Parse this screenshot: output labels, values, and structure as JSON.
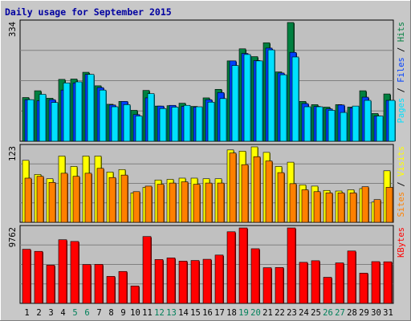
{
  "chart_data": {
    "type": "bar",
    "title": "Daily usage for September 2015",
    "categories": [
      "1",
      "2",
      "3",
      "4",
      "5",
      "6",
      "7",
      "8",
      "9",
      "10",
      "11",
      "12",
      "13",
      "14",
      "15",
      "16",
      "17",
      "18",
      "19",
      "20",
      "21",
      "22",
      "23",
      "24",
      "25",
      "26",
      "27",
      "28",
      "29",
      "30",
      "31"
    ],
    "weekend_days": [
      5,
      6,
      12,
      13,
      19,
      20,
      26,
      27
    ],
    "panels": [
      {
        "id": "hits-files-pages",
        "max_label": "334",
        "ymax": 334,
        "legend": [
          {
            "label": "Hits",
            "color": "#008040"
          },
          {
            "label": "Files",
            "color": "#0040ff"
          },
          {
            "label": "Pages",
            "color": "#00e0ff"
          }
        ],
        "series": [
          {
            "name": "Hits",
            "color": "#008040",
            "values": [
              123,
              142,
              121,
              174,
              175,
              194,
              156,
              104,
              112,
              87,
              143,
              99,
              100,
              107,
              98,
              122,
              146,
              226,
              260,
              238,
              277,
              195,
              334,
              112,
              103,
              96,
              103,
              96,
              142,
              78,
              133
            ]
          },
          {
            "name": "Files",
            "color": "#0040ff",
            "values": [
              117,
              114,
              117,
              144,
              164,
              188,
              151,
              102,
              112,
              75,
              122,
              99,
              101,
              98,
              96,
              117,
              137,
              226,
              247,
              227,
              262,
              192,
              250,
              106,
              98,
              91,
              102,
              94,
              124,
              71,
              115
            ]
          },
          {
            "name": "Pages",
            "color": "#00e0ff",
            "values": [
              117,
              132,
              109,
              164,
              167,
              188,
              144,
              97,
              103,
              71,
              134,
              92,
              96,
              101,
              97,
              110,
              120,
              213,
              244,
              226,
              257,
              187,
              237,
              97,
              97,
              87,
              81,
              99,
              115,
              71,
              115
            ]
          }
        ]
      },
      {
        "id": "visits-sites",
        "max_label": "123",
        "ymax": 123,
        "legend": [
          {
            "label": "Visits",
            "color": "#ffff00"
          },
          {
            "label": "Sites",
            "color": "#ff8000"
          }
        ],
        "series": [
          {
            "name": "Visits",
            "color": "#ffff00",
            "values": [
              101,
              78,
              71,
              108,
              91,
              108,
              108,
              82,
              86,
              48,
              57,
              69,
              70,
              72,
              72,
              71,
              71,
              118,
              116,
              123,
              114,
              91,
              98,
              61,
              59,
              52,
              51,
              53,
              55,
              33,
              84
            ]
          },
          {
            "name": "Sites",
            "color": "#ff8000",
            "values": [
              72,
              75,
              65,
              80,
              75,
              80,
              88,
              73,
              77,
              50,
              59,
              62,
              64,
              66,
              62,
              64,
              64,
              113,
              94,
              107,
              100,
              81,
              63,
              53,
              50,
              48,
              48,
              48,
              58,
              37,
              57
            ]
          }
        ]
      },
      {
        "id": "kbytes",
        "max_label": "9762",
        "ymax": 9762,
        "legend": [
          {
            "label": "KBytes",
            "color": "#ff0000"
          }
        ],
        "series": [
          {
            "name": "KBytes",
            "color": "#ff0000",
            "values": [
              7001,
              6729,
              4941,
              8234,
              8011,
              5026,
              5043,
              3490,
              4128,
              2249,
              8649,
              5673,
              5879,
              5462,
              5549,
              5704,
              6251,
              9266,
              9762,
              7069,
              4616,
              4643,
              9762,
              5311,
              5518,
              3373,
              5236,
              6776,
              3915,
              5403,
              5381
            ]
          }
        ]
      }
    ]
  }
}
